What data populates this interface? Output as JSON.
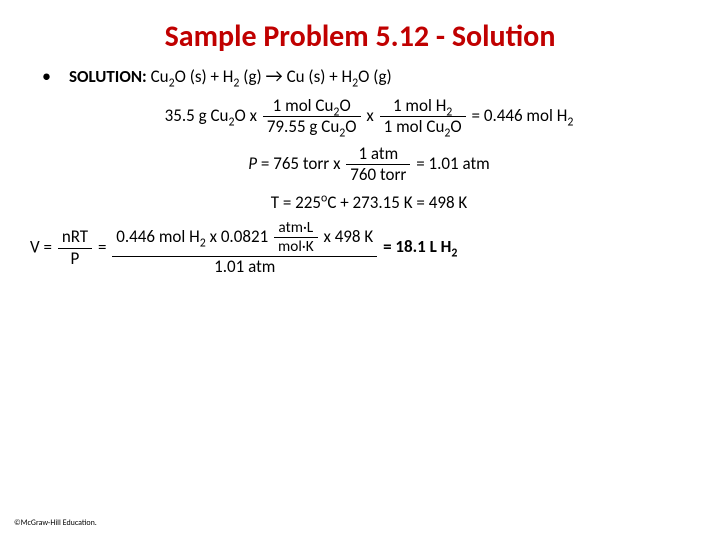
{
  "title": "Sample Problem 5.12 - Solution",
  "bullet": "•",
  "solutionLabel": "SOLUTION:",
  "eq": {
    "reactant1_a": "Cu",
    "reactant1_b": "O (s) + H",
    "reactant1_c": " (g) ",
    "arrow": "→",
    "product_a": "  Cu (s) + H",
    "product_b": "O (g)",
    "sub2": "2"
  },
  "step1": {
    "prefix": "35.5 g Cu",
    "prefix2": "O x ",
    "frac1_num_a": "1 mol Cu",
    "frac1_num_b": "O",
    "frac1_den_a": "79.55 g Cu",
    "frac1_den_b": "O",
    "mid": " x ",
    "frac2_num": "1 mol H",
    "frac2_den_a": "1 mol Cu",
    "frac2_den_b": "O",
    "result": " = 0.446 mol H",
    "sub": "2"
  },
  "step2": {
    "prefix": " = 765 torr x ",
    "P": "P",
    "num": "1 atm",
    "den": "760 torr",
    "result": " = 1.01 atm"
  },
  "step3": {
    "text_a": "T = 225",
    "deg": "o",
    "text_b": "C + 273.15 K = 498 K"
  },
  "step4": {
    "V": "V = ",
    "frac1_num": "nRT",
    "frac1_den": "P",
    "eq": " = ",
    "num_a": "0.446 mol H",
    "num_b": " x 0.0821 ",
    "num_c": " x 498 K",
    "inner_num": "atm·L",
    "inner_den": "mol·K",
    "den": "1.01 atm",
    "result": " = 18.1 L H",
    "sub": "2"
  },
  "copyright": "©McGraw-Hill Education."
}
